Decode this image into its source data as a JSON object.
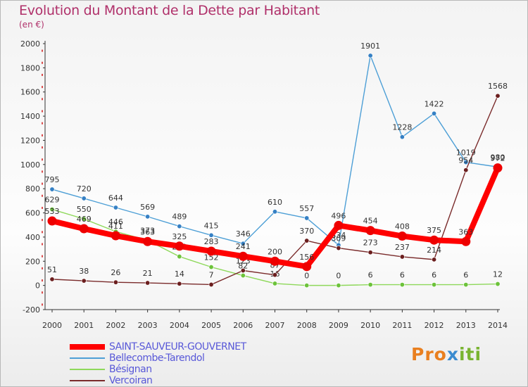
{
  "title": "Evolution du Montant de la Dette par Habitant",
  "unit_label": "(en €)",
  "logo": {
    "part1": "Pro",
    "part2": "x",
    "part3": "iti"
  },
  "chart_data": {
    "type": "line",
    "x": [
      2000,
      2001,
      2002,
      2003,
      2004,
      2005,
      2006,
      2007,
      2008,
      2009,
      2010,
      2011,
      2012,
      2013,
      2014
    ],
    "ylim": [
      -200,
      2000
    ],
    "yticks": [
      -200,
      0,
      200,
      400,
      600,
      800,
      1000,
      1200,
      1400,
      1600,
      1800,
      2000
    ],
    "grid": false,
    "legend_position": "bottom-left",
    "series": [
      {
        "name": "Bellecombe-Tarendol",
        "color": "#4d9fd6",
        "marker_color": "#3580c4",
        "values": [
          795,
          720,
          644,
          569,
          489,
          415,
          346,
          610,
          557,
          334,
          1901,
          1228,
          1422,
          1019,
          980
        ]
      },
      {
        "name": "Bésignan",
        "color": "#8ed85a",
        "marker_color": "#6cc23a",
        "values": [
          629,
          550,
          446,
          373,
          239,
          152,
          82,
          16,
          0,
          0,
          6,
          6,
          6,
          6,
          12
        ]
      },
      {
        "name": "Vercoiran",
        "color": "#7a2b2b",
        "marker_color": "#6b1e1e",
        "values": [
          51,
          38,
          26,
          21,
          14,
          7,
          123,
          87,
          370,
          309,
          273,
          237,
          214,
          954,
          1568
        ]
      },
      {
        "name": "SAINT-SAUVEUR-GOUVERNET",
        "color": "#ff0000",
        "marker_color": "#ee0000",
        "values": [
          533,
          469,
          411,
          363,
          325,
          283,
          241,
          200,
          156,
          496,
          454,
          408,
          375,
          363,
          972
        ]
      }
    ],
    "labels": {
      "Bellecombe-Tarendol": [
        "795",
        "720",
        "644",
        "569",
        "489",
        "415",
        "346",
        "610",
        "557",
        "334",
        "1901",
        "1228",
        "1422",
        "1019",
        "980"
      ],
      "Bésignan": [
        "629",
        "550",
        "446",
        "373",
        "239",
        "152",
        "82",
        "16",
        "0",
        "0",
        "6",
        "6",
        "6",
        "6",
        "12"
      ],
      "Vercoiran": [
        "51",
        "38",
        "26",
        "21",
        "14",
        "7",
        "123",
        "87",
        "370",
        "309",
        "273",
        "237",
        "214",
        "954",
        "1568"
      ],
      "SAINT-SAUVEUR-GOUVERNET": [
        "533",
        "469",
        "411",
        "363",
        "325",
        "283",
        "241",
        "200",
        "156",
        "496",
        "454",
        "408",
        "375",
        "363",
        "972"
      ]
    }
  },
  "legend": [
    {
      "label": "SAINT-SAUVEUR-GOUVERNET",
      "color": "#ff0000",
      "thick": true
    },
    {
      "label": "Bellecombe-Tarendol",
      "color": "#4d9fd6",
      "thick": false
    },
    {
      "label": "Bésignan",
      "color": "#8ed85a",
      "thick": false
    },
    {
      "label": "Vercoiran",
      "color": "#7a2b2b",
      "thick": false
    }
  ]
}
